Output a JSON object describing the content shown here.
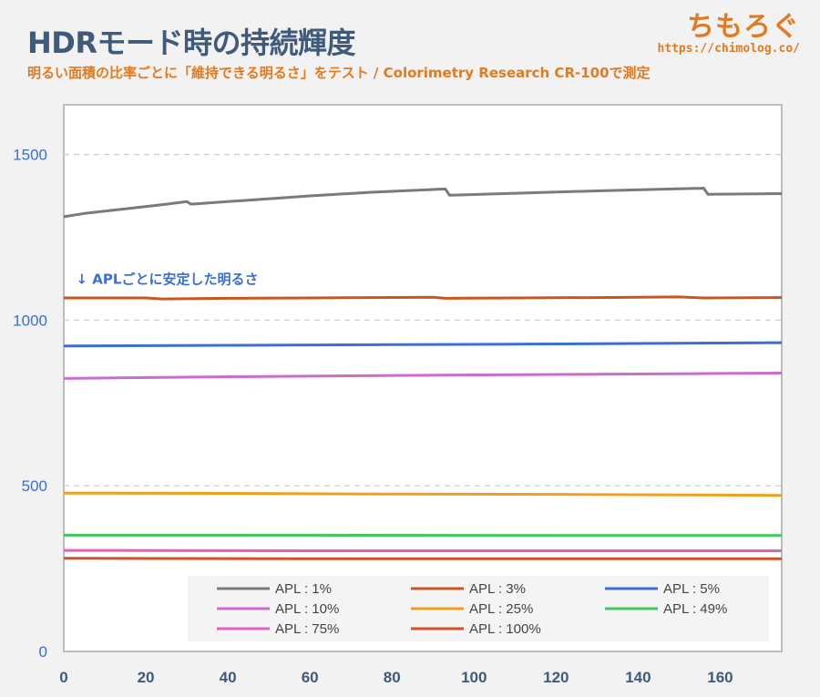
{
  "header": {
    "title": "HDRモード時の持続輝度",
    "subtitle": "明るい面積の比率ごとに「維持できる明るさ」をテスト / Colorimetry Research CR-100で測定",
    "brand_name": "ちもろぐ",
    "brand_url": "https://chimolog.co/"
  },
  "chart_data": {
    "type": "line",
    "xlim": [
      0,
      175
    ],
    "ylim": [
      0,
      1650
    ],
    "x_ticks": [
      0,
      20,
      40,
      60,
      80,
      100,
      120,
      140,
      160
    ],
    "y_ticks": [
      0,
      500,
      1000,
      1500
    ],
    "grid": "horizontal-dashed",
    "legend_position": "bottom-right",
    "annotation": {
      "text": "↓ APLごとに安定した明るさ",
      "x": 3,
      "y": 1110
    },
    "series": [
      {
        "name": "APL : 1%",
        "color": "#7a7a7a",
        "points": [
          [
            0,
            1312
          ],
          [
            5,
            1322
          ],
          [
            15,
            1336
          ],
          [
            25,
            1350
          ],
          [
            30,
            1358
          ],
          [
            31,
            1350
          ],
          [
            45,
            1362
          ],
          [
            60,
            1375
          ],
          [
            75,
            1386
          ],
          [
            93,
            1396
          ],
          [
            94,
            1377
          ],
          [
            110,
            1383
          ],
          [
            130,
            1390
          ],
          [
            145,
            1395
          ],
          [
            156,
            1398
          ],
          [
            157,
            1380
          ],
          [
            175,
            1382
          ]
        ]
      },
      {
        "name": "APL : 3%",
        "color": "#c8561f",
        "points": [
          [
            0,
            1067
          ],
          [
            20,
            1067
          ],
          [
            24,
            1064
          ],
          [
            40,
            1066
          ],
          [
            60,
            1067
          ],
          [
            75,
            1068
          ],
          [
            90,
            1069
          ],
          [
            93,
            1066
          ],
          [
            110,
            1067
          ],
          [
            130,
            1068
          ],
          [
            150,
            1070
          ],
          [
            156,
            1067
          ],
          [
            175,
            1068
          ]
        ]
      },
      {
        "name": "APL : 5%",
        "color": "#3a6fd1",
        "points": [
          [
            0,
            922
          ],
          [
            40,
            924
          ],
          [
            80,
            926
          ],
          [
            120,
            928
          ],
          [
            160,
            931
          ],
          [
            175,
            932
          ]
        ]
      },
      {
        "name": "APL : 10%",
        "color": "#cc6cd1",
        "points": [
          [
            0,
            824
          ],
          [
            40,
            829
          ],
          [
            80,
            833
          ],
          [
            120,
            836
          ],
          [
            160,
            839
          ],
          [
            175,
            840
          ]
        ]
      },
      {
        "name": "APL : 25%",
        "color": "#f0a020",
        "points": [
          [
            0,
            478
          ],
          [
            40,
            477
          ],
          [
            80,
            475
          ],
          [
            120,
            474
          ],
          [
            160,
            472
          ],
          [
            175,
            471
          ]
        ]
      },
      {
        "name": "APL : 49%",
        "color": "#3fc95a",
        "points": [
          [
            0,
            351
          ],
          [
            60,
            351
          ],
          [
            120,
            350
          ],
          [
            175,
            350
          ]
        ]
      },
      {
        "name": "APL : 75%",
        "color": "#e060c8",
        "points": [
          [
            0,
            305
          ],
          [
            60,
            304
          ],
          [
            120,
            304
          ],
          [
            175,
            304
          ]
        ]
      },
      {
        "name": "APL : 100%",
        "color": "#d2502a",
        "points": [
          [
            0,
            281
          ],
          [
            60,
            280
          ],
          [
            120,
            280
          ],
          [
            175,
            280
          ]
        ]
      }
    ]
  }
}
